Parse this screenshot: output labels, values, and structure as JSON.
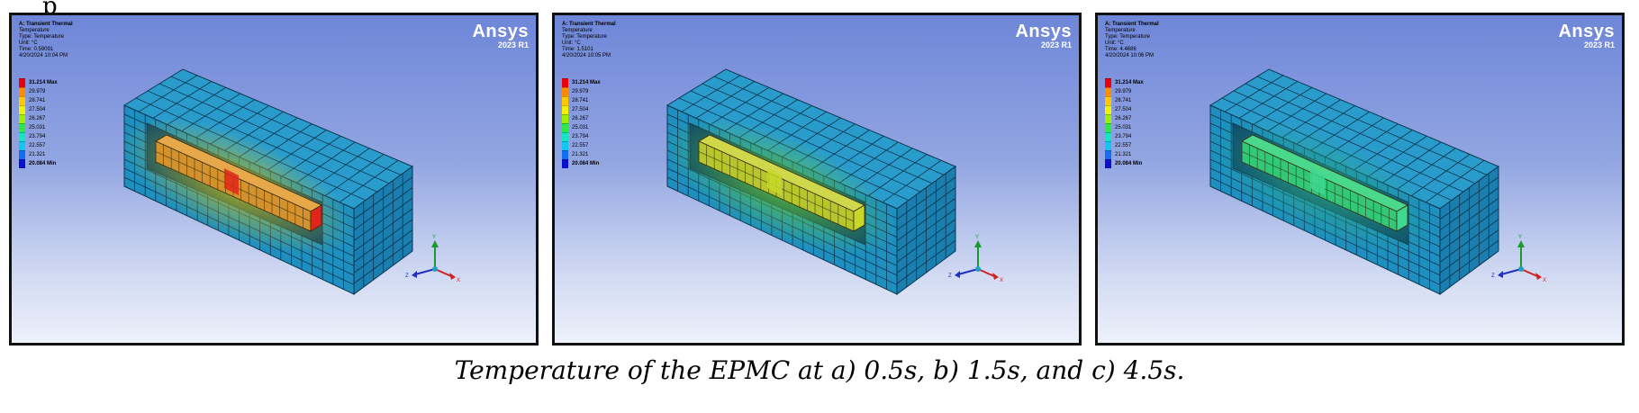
{
  "top_fragment": "p",
  "caption": "Temperature of the EPMC at a) 0.5s, b) 1.5s, and c) 4.5s.",
  "legend_values": [
    "31.214 Max",
    "29.979",
    "28.741",
    "27.504",
    "26.267",
    "25.031",
    "23.794",
    "22.557",
    "21.321",
    "20.084 Min"
  ],
  "legend_colors": [
    "#e8000c",
    "#ff8c00",
    "#ffc800",
    "#f0f000",
    "#9bf000",
    "#2ee84a",
    "#14e6c0",
    "#12c8f0",
    "#1270f0",
    "#0a10d0"
  ],
  "panels": [
    {
      "title": "A: Transient Thermal",
      "subtitle": "Temperature",
      "type": "Type: Temperature",
      "unit": "Unit: °C",
      "time": "Time: 0.59091",
      "date": "4/20/2024 10:04 PM",
      "logo": "Ansys",
      "version": "2023 R1",
      "core_color": "#d3922c",
      "core_color_light": "#e6a848",
      "glow_color": "#c9c21a",
      "hot_color": "#e0261a"
    },
    {
      "title": "A: Transient Thermal",
      "subtitle": "Temperature",
      "type": "Type: Temperature",
      "unit": "Unit: °C",
      "time": "Time: 1.5101",
      "date": "4/20/2024 10:05 PM",
      "logo": "Ansys",
      "version": "2023 R1",
      "core_color": "#b7c62c",
      "core_color_light": "#cfd84a",
      "glow_color": "#66c833",
      "hot_color": "#c7d82a"
    },
    {
      "title": "A: Transient Thermal",
      "subtitle": "Temperature",
      "type": "Type: Temperature",
      "unit": "Unit: °C",
      "time": "Time: 4.4686",
      "date": "4/20/2024 10:06 PM",
      "logo": "Ansys",
      "version": "2023 R1",
      "core_color": "#32c878",
      "core_color_light": "#4ad88c",
      "glow_color": "#2aa884",
      "hot_color": "#3ed890"
    }
  ],
  "triad": {
    "y": "Y",
    "z": "Z",
    "x": "X"
  }
}
